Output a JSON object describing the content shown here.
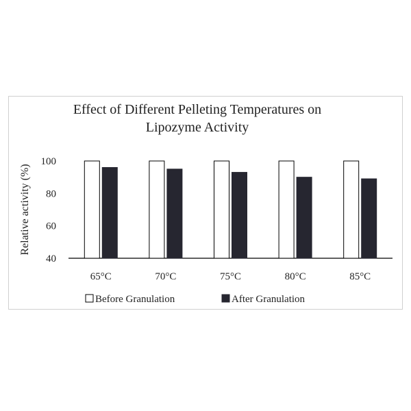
{
  "chart_data": {
    "type": "bar",
    "title_lines": [
      "Effect of Different Pelleting Temperatures on",
      "Lipozyme Activity"
    ],
    "xlabel": "",
    "ylabel": "Relative activity (%)",
    "categories": [
      "65°C",
      "70°C",
      "75°C",
      "80°C",
      "85°C"
    ],
    "series": [
      {
        "name": "Before Granulation",
        "values": [
          100,
          100,
          100,
          100,
          100
        ],
        "color": "#ffffff",
        "stroke": "#000000"
      },
      {
        "name": "After Granulation",
        "values": [
          96,
          95,
          93,
          90,
          89
        ],
        "color": "#262630",
        "stroke": "#262630"
      }
    ],
    "ylim": [
      40,
      100
    ],
    "yticks": [
      40,
      60,
      80,
      100
    ],
    "grid": false,
    "legend_position": "bottom"
  }
}
